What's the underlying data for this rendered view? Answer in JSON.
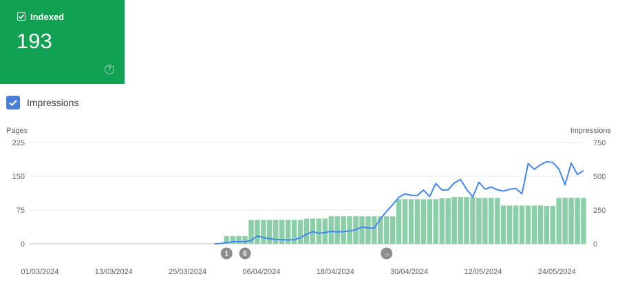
{
  "card": {
    "label": "Indexed",
    "value": "193",
    "color": "#11a153",
    "checkbox_icon": "checkbox-checked-icon",
    "help_icon": "help-circle-icon"
  },
  "impressions_toggle": {
    "label": "Impressions",
    "checked": true,
    "color": "#4a7ddd"
  },
  "chart_data": {
    "type": "bar",
    "left_axis_title": "Pages",
    "right_axis_title": "Impressions",
    "left_ticks": [
      "225",
      "150",
      "75",
      "0"
    ],
    "right_ticks": [
      "750",
      "500",
      "250",
      "0"
    ],
    "left_ylim": [
      0,
      225
    ],
    "right_ylim": [
      0,
      750
    ],
    "date_labels": [
      "01/03/2024",
      "13/03/2024",
      "25/03/2024",
      "06/04/2024",
      "18/04/2024",
      "30/04/2024",
      "12/05/2024",
      "24/05/2024"
    ],
    "x_start": "2024-03-01",
    "x_end": "2024-05-30",
    "grid": true,
    "series": [
      {
        "name": "Pages",
        "color": "#8acfa8",
        "points": [
          [
            "2024-04-02",
            17
          ],
          [
            "2024-04-03",
            17
          ],
          [
            "2024-04-04",
            17
          ],
          [
            "2024-04-05",
            17
          ],
          [
            "2024-04-06",
            53
          ],
          [
            "2024-04-07",
            53
          ],
          [
            "2024-04-08",
            53
          ],
          [
            "2024-04-09",
            53
          ],
          [
            "2024-04-10",
            53
          ],
          [
            "2024-04-11",
            53
          ],
          [
            "2024-04-12",
            53
          ],
          [
            "2024-04-13",
            53
          ],
          [
            "2024-04-14",
            53
          ],
          [
            "2024-04-15",
            56
          ],
          [
            "2024-04-16",
            56
          ],
          [
            "2024-04-17",
            56
          ],
          [
            "2024-04-18",
            56
          ],
          [
            "2024-04-19",
            61
          ],
          [
            "2024-04-20",
            61
          ],
          [
            "2024-04-21",
            61
          ],
          [
            "2024-04-22",
            61
          ],
          [
            "2024-04-23",
            61
          ],
          [
            "2024-04-24",
            61
          ],
          [
            "2024-04-25",
            61
          ],
          [
            "2024-04-26",
            61
          ],
          [
            "2024-04-27",
            61
          ],
          [
            "2024-04-28",
            61
          ],
          [
            "2024-04-29",
            61
          ],
          [
            "2024-04-30",
            99
          ],
          [
            "2024-05-01",
            99
          ],
          [
            "2024-05-02",
            99
          ],
          [
            "2024-05-03",
            99
          ],
          [
            "2024-05-04",
            99
          ],
          [
            "2024-05-05",
            99
          ],
          [
            "2024-05-06",
            99
          ],
          [
            "2024-05-07",
            101
          ],
          [
            "2024-05-08",
            101
          ],
          [
            "2024-05-09",
            104
          ],
          [
            "2024-05-10",
            104
          ],
          [
            "2024-05-11",
            104
          ],
          [
            "2024-05-12",
            104
          ],
          [
            "2024-05-13",
            102
          ],
          [
            "2024-05-14",
            102
          ],
          [
            "2024-05-15",
            102
          ],
          [
            "2024-05-16",
            102
          ],
          [
            "2024-05-17",
            85
          ],
          [
            "2024-05-18",
            85
          ],
          [
            "2024-05-19",
            85
          ],
          [
            "2024-05-20",
            85
          ],
          [
            "2024-05-21",
            85
          ],
          [
            "2024-05-22",
            85
          ],
          [
            "2024-05-23",
            85
          ],
          [
            "2024-05-24",
            84
          ],
          [
            "2024-05-25",
            84
          ],
          [
            "2024-05-26",
            102
          ],
          [
            "2024-05-27",
            102
          ],
          [
            "2024-05-28",
            102
          ],
          [
            "2024-05-29",
            102
          ],
          [
            "2024-05-30",
            102
          ]
        ]
      },
      {
        "name": "Impressions",
        "color": "#4285f4",
        "points": [
          [
            "2024-03-31",
            0
          ],
          [
            "2024-04-01",
            2
          ],
          [
            "2024-04-02",
            8
          ],
          [
            "2024-04-03",
            15
          ],
          [
            "2024-04-04",
            16
          ],
          [
            "2024-04-05",
            14
          ],
          [
            "2024-04-06",
            25
          ],
          [
            "2024-04-07",
            57
          ],
          [
            "2024-04-08",
            46
          ],
          [
            "2024-04-09",
            37
          ],
          [
            "2024-04-10",
            31
          ],
          [
            "2024-04-11",
            30
          ],
          [
            "2024-04-12",
            28
          ],
          [
            "2024-04-13",
            30
          ],
          [
            "2024-04-14",
            45
          ],
          [
            "2024-04-15",
            70
          ],
          [
            "2024-04-16",
            89
          ],
          [
            "2024-04-17",
            78
          ],
          [
            "2024-04-18",
            83
          ],
          [
            "2024-04-19",
            92
          ],
          [
            "2024-04-20",
            88
          ],
          [
            "2024-04-21",
            90
          ],
          [
            "2024-04-22",
            95
          ],
          [
            "2024-04-23",
            103
          ],
          [
            "2024-04-24",
            124
          ],
          [
            "2024-04-25",
            117
          ],
          [
            "2024-04-26",
            116
          ],
          [
            "2024-04-27",
            184
          ],
          [
            "2024-04-28",
            240
          ],
          [
            "2024-04-29",
            290
          ],
          [
            "2024-04-30",
            345
          ],
          [
            "2024-05-01",
            370
          ],
          [
            "2024-05-02",
            359
          ],
          [
            "2024-05-03",
            358
          ],
          [
            "2024-05-04",
            398
          ],
          [
            "2024-05-05",
            350
          ],
          [
            "2024-05-06",
            447
          ],
          [
            "2024-05-07",
            398
          ],
          [
            "2024-05-08",
            400
          ],
          [
            "2024-05-09",
            450
          ],
          [
            "2024-05-10",
            476
          ],
          [
            "2024-05-11",
            404
          ],
          [
            "2024-05-12",
            347
          ],
          [
            "2024-05-13",
            456
          ],
          [
            "2024-05-14",
            405
          ],
          [
            "2024-05-15",
            420
          ],
          [
            "2024-05-16",
            400
          ],
          [
            "2024-05-17",
            390
          ],
          [
            "2024-05-18",
            404
          ],
          [
            "2024-05-19",
            410
          ],
          [
            "2024-05-20",
            370
          ],
          [
            "2024-05-21",
            594
          ],
          [
            "2024-05-22",
            552
          ],
          [
            "2024-05-23",
            585
          ],
          [
            "2024-05-24",
            607
          ],
          [
            "2024-05-25",
            603
          ],
          [
            "2024-05-26",
            553
          ],
          [
            "2024-05-27",
            437
          ],
          [
            "2024-05-28",
            597
          ],
          [
            "2024-05-29",
            514
          ],
          [
            "2024-05-30",
            542
          ]
        ]
      }
    ],
    "annotations": [
      {
        "label": "1",
        "date": "2024-04-02"
      },
      {
        "label": "6",
        "date": "2024-04-05"
      },
      {
        "label": "→",
        "date": "2024-04-28"
      }
    ]
  }
}
